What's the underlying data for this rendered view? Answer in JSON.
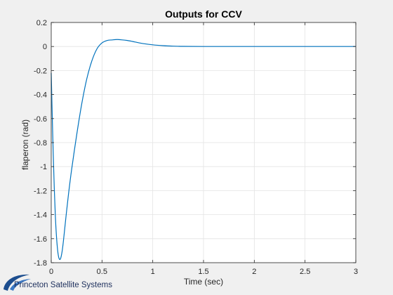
{
  "chart_data": {
    "type": "line",
    "title": "Outputs for CCV",
    "xlabel": "Time (sec)",
    "ylabel": "flaperon (rad)",
    "xlim": [
      0,
      3
    ],
    "ylim": [
      -1.8,
      0.2
    ],
    "xticks": [
      0,
      0.5,
      1,
      1.5,
      2,
      2.5,
      3
    ],
    "xtick_labels": [
      "0",
      "0.5",
      "1",
      "1.5",
      "2",
      "2.5",
      "3"
    ],
    "yticks": [
      -1.8,
      -1.6,
      -1.4,
      -1.2,
      -1,
      -0.8,
      -0.6,
      -0.4,
      -0.2,
      0,
      0.2
    ],
    "ytick_labels": [
      "-1.8",
      "-1.6",
      "-1.4",
      "-1.2",
      "-1",
      "-0.8",
      "-0.6",
      "-0.4",
      "-0.2",
      "0",
      "0.2"
    ],
    "grid": true,
    "series": [
      {
        "color": "#0072bd",
        "x": [
          0,
          0.005,
          0.01,
          0.02,
          0.03,
          0.04,
          0.05,
          0.06,
          0.07,
          0.08,
          0.09,
          0.1,
          0.11,
          0.12,
          0.13,
          0.14,
          0.15,
          0.17,
          0.2,
          0.25,
          0.3,
          0.35,
          0.4,
          0.45,
          0.5,
          0.55,
          0.6,
          0.65,
          0.7,
          0.75,
          0.8,
          0.85,
          0.9,
          1.0,
          1.1,
          1.2,
          1.3,
          1.5,
          1.8,
          2.0,
          2.5,
          3.0
        ],
        "y": [
          -0.22,
          -0.4,
          -0.58,
          -0.9,
          -1.18,
          -1.4,
          -1.56,
          -1.67,
          -1.74,
          -1.77,
          -1.77,
          -1.74,
          -1.69,
          -1.62,
          -1.54,
          -1.46,
          -1.38,
          -1.23,
          -1.03,
          -0.74,
          -0.48,
          -0.27,
          -0.12,
          -0.02,
          0.03,
          0.05,
          0.055,
          0.058,
          0.055,
          0.05,
          0.042,
          0.033,
          0.025,
          0.014,
          0.007,
          0.003,
          0.001,
          0.0,
          0.0,
          0.0,
          0.0,
          0.0
        ]
      }
    ]
  },
  "logo": {
    "text": "Princeton Satellite Systems"
  }
}
